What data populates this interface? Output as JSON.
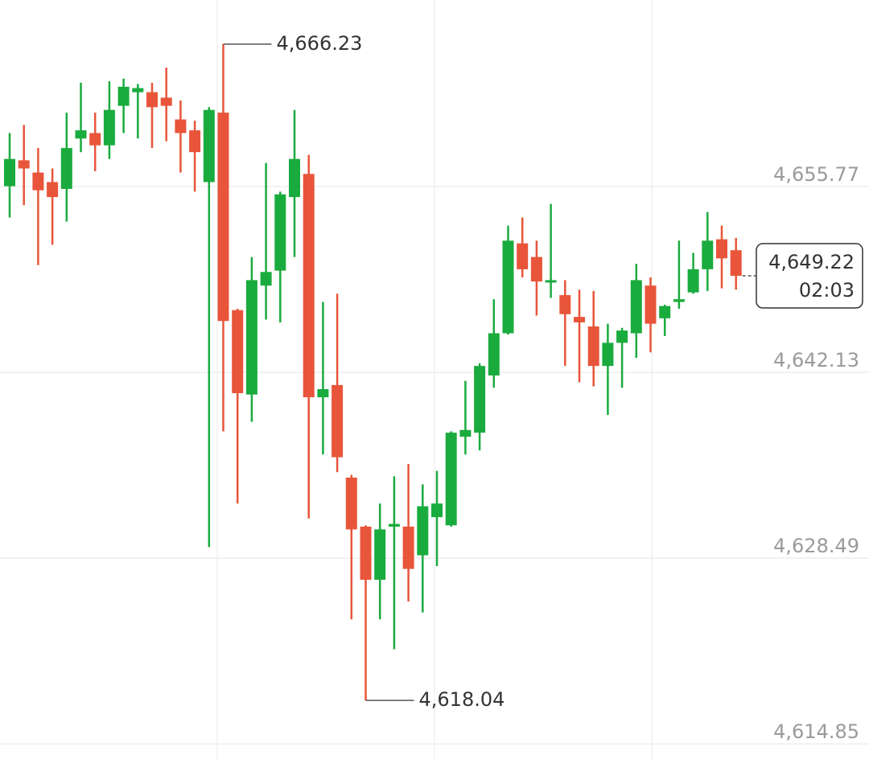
{
  "chart_data": {
    "type": "candlestick",
    "up_color": "#1aab3e",
    "down_color": "#e8553a",
    "ylim": [
      4613.74,
      4669.47
    ],
    "yticks": [
      {
        "value": 4655.77,
        "label": "4,655.77"
      },
      {
        "value": 4642.13,
        "label": "4,642.13"
      },
      {
        "value": 4628.49,
        "label": "4,628.49"
      },
      {
        "value": 4614.85,
        "label": "4,614.85"
      }
    ],
    "grid": true,
    "open": [
      4655.8,
      4657.7,
      4656.8,
      4656.1,
      4655.6,
      4659.3,
      4659.7,
      4658.8,
      4661.7,
      4662.7,
      4662.7,
      4662.3,
      4660.7,
      4659.9,
      4656.1,
      4661.2,
      4646.7,
      4640.5,
      4648.5,
      4649.6,
      4655.0,
      4656.7,
      4640.3,
      4641.2,
      4634.4,
      4630.8,
      4626.9,
      4630.8,
      4630.8,
      4628.7,
      4631.5,
      4630.9,
      4637.4,
      4637.7,
      4641.9,
      4645.0,
      4651.6,
      4650.6,
      4648.8,
      4647.8,
      4646.2,
      4645.5,
      4642.6,
      4644.3,
      4645.0,
      4648.5,
      4646.1,
      4647.3,
      4648.0,
      4649.7,
      4651.9,
      4651.1
    ],
    "high": [
      4659.7,
      4660.3,
      4658.6,
      4657.1,
      4661.2,
      4663.4,
      4661.2,
      4663.5,
      4663.7,
      4663.3,
      4663.4,
      4664.5,
      4662.1,
      4660.6,
      4661.6,
      4666.23,
      4646.8,
      4650.6,
      4657.5,
      4655.4,
      4661.4,
      4658.1,
      4647.3,
      4647.9,
      4634.6,
      4630.9,
      4632.5,
      4634.5,
      4635.4,
      4633.9,
      4634.9,
      4637.8,
      4641.5,
      4642.8,
      4647.5,
      4652.9,
      4653.5,
      4651.8,
      4654.5,
      4648.9,
      4648.2,
      4648.1,
      4645.7,
      4645.4,
      4650.1,
      4649.1,
      4647.1,
      4651.8,
      4650.9,
      4653.9,
      4652.9,
      4652.0
    ],
    "low": [
      4653.5,
      4654.4,
      4650.0,
      4651.5,
      4653.2,
      4658.3,
      4656.9,
      4657.8,
      4659.7,
      4659.3,
      4658.6,
      4659.1,
      4656.8,
      4655.4,
      4629.3,
      4637.8,
      4632.5,
      4638.5,
      4646.0,
      4645.8,
      4650.6,
      4631.4,
      4636.1,
      4634.8,
      4624.0,
      4618.04,
      4624.0,
      4621.8,
      4625.3,
      4624.5,
      4627.9,
      4630.8,
      4636.1,
      4636.4,
      4641.0,
      4644.9,
      4649.1,
      4646.3,
      4647.6,
      4642.6,
      4641.4,
      4641.1,
      4639.0,
      4641.0,
      4643.2,
      4643.6,
      4644.8,
      4646.8,
      4647.9,
      4648.1,
      4648.3,
      4648.2
    ],
    "close": [
      4657.8,
      4657.1,
      4655.5,
      4655.0,
      4658.6,
      4659.9,
      4658.8,
      4661.4,
      4663.1,
      4663.0,
      4661.6,
      4661.7,
      4659.7,
      4658.3,
      4661.4,
      4645.9,
      4640.6,
      4648.9,
      4649.5,
      4655.2,
      4657.8,
      4640.3,
      4640.9,
      4635.9,
      4630.6,
      4626.9,
      4630.6,
      4631.0,
      4627.7,
      4632.3,
      4632.5,
      4637.7,
      4637.9,
      4642.6,
      4645.0,
      4651.8,
      4649.7,
      4648.8,
      4648.9,
      4646.4,
      4645.8,
      4642.6,
      4644.3,
      4645.2,
      4648.9,
      4645.7,
      4647.0,
      4647.5,
      4649.7,
      4651.8,
      4650.5,
      4649.22
    ],
    "max_label": "4,666.23",
    "min_label": "4,618.04",
    "last_price_label": "4,649.22",
    "countdown": "02:03"
  }
}
